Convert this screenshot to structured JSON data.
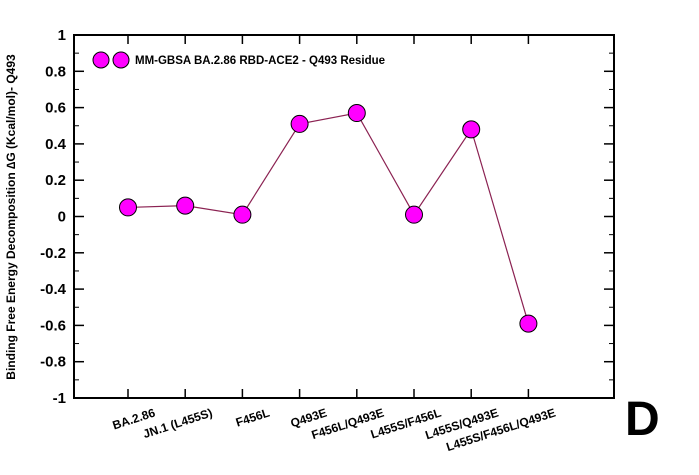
{
  "chart_data": {
    "type": "line",
    "title": "",
    "xlabel": "",
    "ylabel": "Binding Free Energy Decomposition ∆G (Kcal/mol)- Q493",
    "ylim": [
      -1,
      1
    ],
    "yticks": [
      1,
      0.8,
      0.6,
      0.4,
      0.2,
      0,
      -0.2,
      -0.4,
      -0.6,
      -0.8,
      -1
    ],
    "ytick_labels": [
      "1",
      "0.8",
      "0.6",
      "0.4",
      "0.2",
      "0",
      "-0.2",
      "-0.4",
      "-0.6",
      "-0.8",
      "-1"
    ],
    "categories": [
      "BA.2.86",
      "JN.1 (L455S)",
      "F456L",
      "Q493E",
      "F456L/Q493E",
      "L455S/F456L",
      "L455S/Q493E",
      "L455S/F456L/Q493E"
    ],
    "series": [
      {
        "name": "MM-GBSA BA.2.86 RBD-ACE2 -  Q493 Residue",
        "values": [
          0.05,
          0.06,
          0.01,
          0.51,
          0.57,
          0.01,
          0.48,
          -0.59
        ],
        "marker_color": "#ff00ff",
        "line_color": "#8b2252"
      }
    ],
    "legend_position": "top-left",
    "grid": false
  },
  "panel_label": "D"
}
